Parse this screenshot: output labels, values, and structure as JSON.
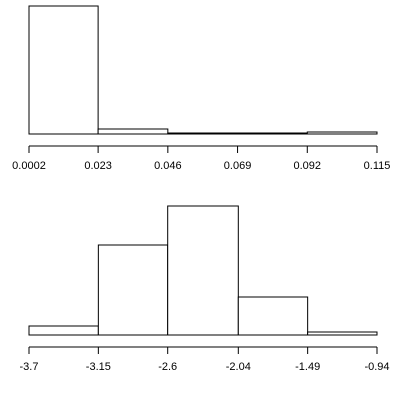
{
  "chart_data": [
    {
      "type": "histogram",
      "bins": [
        0.0002,
        0.023,
        0.046,
        0.069,
        0.092,
        0.115
      ],
      "values": [
        128,
        5,
        1,
        1,
        2
      ],
      "xlim": [
        0.0002,
        0.115
      ],
      "xticks": [
        0.0002,
        0.023,
        0.046,
        0.069,
        0.092,
        0.115
      ],
      "ylim": [
        0,
        130
      ],
      "color": "#ffffff"
    },
    {
      "type": "histogram",
      "bins": [
        -3.7,
        -3.15,
        -2.6,
        -2.04,
        -1.49,
        -0.94
      ],
      "values": [
        9,
        90,
        129,
        38,
        3
      ],
      "xlim": [
        -3.7,
        -0.94
      ],
      "xticks": [
        -3.7,
        -3.15,
        -2.6,
        -2.04,
        -1.49,
        -0.94
      ],
      "ylim": [
        0,
        130
      ],
      "color": "#ffffff"
    }
  ]
}
